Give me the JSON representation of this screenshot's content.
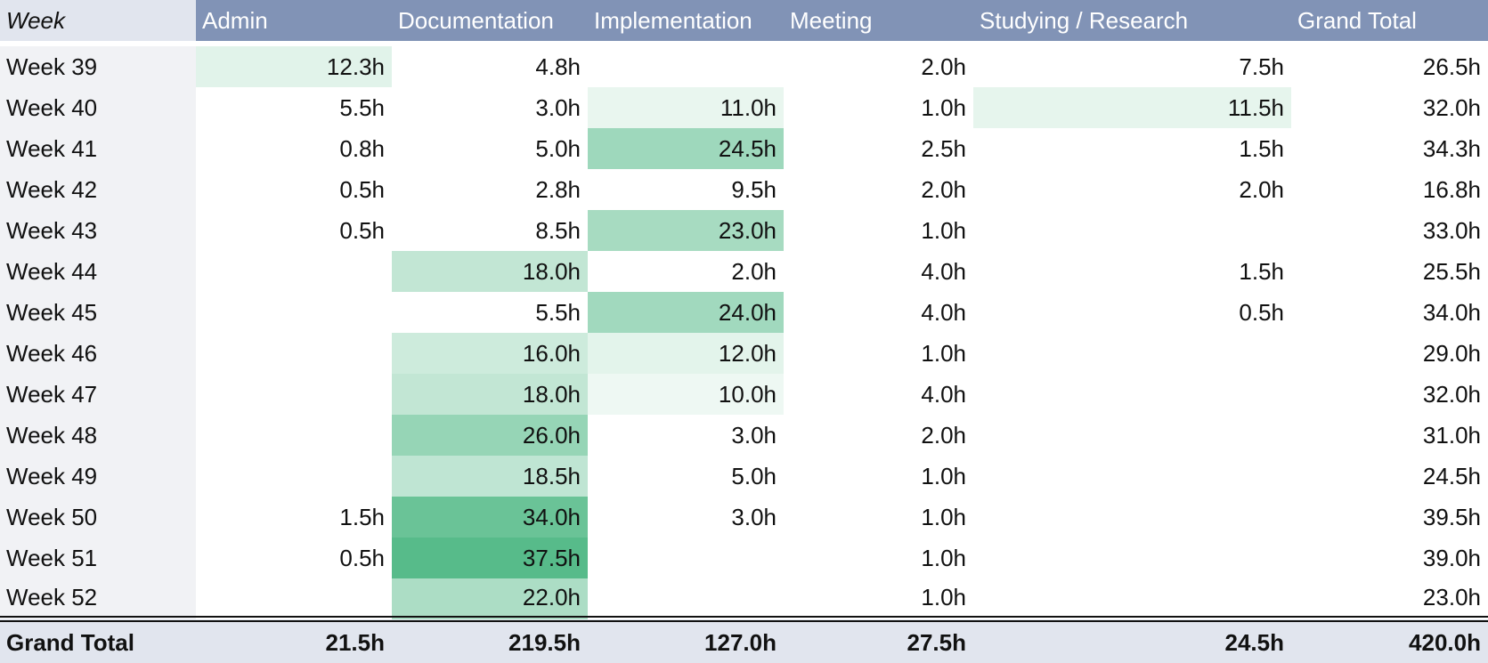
{
  "table": {
    "headers": {
      "week": "Week",
      "admin": "Admin",
      "documentation": "Documentation",
      "implementation": "Implementation",
      "meeting": "Meeting",
      "studying": "Studying / Research",
      "total": "Grand Total"
    },
    "rows": [
      {
        "week": "Week 39",
        "admin": "12.3h",
        "documentation": "4.8h",
        "implementation": "",
        "meeting": "2.0h",
        "studying": "7.5h",
        "total": "26.5h"
      },
      {
        "week": "Week 40",
        "admin": "5.5h",
        "documentation": "3.0h",
        "implementation": "11.0h",
        "meeting": "1.0h",
        "studying": "11.5h",
        "total": "32.0h"
      },
      {
        "week": "Week 41",
        "admin": "0.8h",
        "documentation": "5.0h",
        "implementation": "24.5h",
        "meeting": "2.5h",
        "studying": "1.5h",
        "total": "34.3h"
      },
      {
        "week": "Week 42",
        "admin": "0.5h",
        "documentation": "2.8h",
        "implementation": "9.5h",
        "meeting": "2.0h",
        "studying": "2.0h",
        "total": "16.8h"
      },
      {
        "week": "Week 43",
        "admin": "0.5h",
        "documentation": "8.5h",
        "implementation": "23.0h",
        "meeting": "1.0h",
        "studying": "",
        "total": "33.0h"
      },
      {
        "week": "Week 44",
        "admin": "",
        "documentation": "18.0h",
        "implementation": "2.0h",
        "meeting": "4.0h",
        "studying": "1.5h",
        "total": "25.5h"
      },
      {
        "week": "Week 45",
        "admin": "",
        "documentation": "5.5h",
        "implementation": "24.0h",
        "meeting": "4.0h",
        "studying": "0.5h",
        "total": "34.0h"
      },
      {
        "week": "Week 46",
        "admin": "",
        "documentation": "16.0h",
        "implementation": "12.0h",
        "meeting": "1.0h",
        "studying": "",
        "total": "29.0h"
      },
      {
        "week": "Week 47",
        "admin": "",
        "documentation": "18.0h",
        "implementation": "10.0h",
        "meeting": "4.0h",
        "studying": "",
        "total": "32.0h"
      },
      {
        "week": "Week 48",
        "admin": "",
        "documentation": "26.0h",
        "implementation": "3.0h",
        "meeting": "2.0h",
        "studying": "",
        "total": "31.0h"
      },
      {
        "week": "Week 49",
        "admin": "",
        "documentation": "18.5h",
        "implementation": "5.0h",
        "meeting": "1.0h",
        "studying": "",
        "total": "24.5h"
      },
      {
        "week": "Week 50",
        "admin": "1.5h",
        "documentation": "34.0h",
        "implementation": "3.0h",
        "meeting": "1.0h",
        "studying": "",
        "total": "39.5h"
      },
      {
        "week": "Week 51",
        "admin": "0.5h",
        "documentation": "37.5h",
        "implementation": "",
        "meeting": "1.0h",
        "studying": "",
        "total": "39.0h"
      },
      {
        "week": "Week 52",
        "admin": "",
        "documentation": "22.0h",
        "implementation": "",
        "meeting": "1.0h",
        "studying": "",
        "total": "23.0h"
      }
    ],
    "footer": {
      "week": "Grand Total",
      "admin": "21.5h",
      "documentation": "219.5h",
      "implementation": "127.0h",
      "meeting": "27.5h",
      "studying": "24.5h",
      "total": "420.0h"
    }
  },
  "heatmap": {
    "shaded_columns": [
      "admin",
      "documentation",
      "implementation",
      "studying"
    ],
    "scale_min": 10,
    "scale_max": 37.5,
    "color_low": "#eef8f3",
    "color_high": "#57bb8a"
  },
  "colors": {
    "header_bg": "#8193b6",
    "header_week_bg": "#e1e5ee",
    "week_column_bg": "#f1f2f5",
    "footer_bg": "#e1e5ee"
  }
}
